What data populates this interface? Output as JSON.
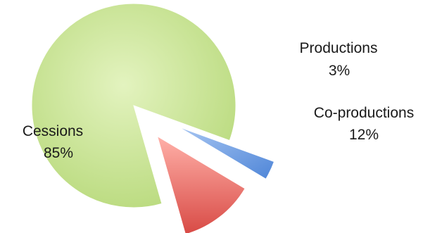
{
  "chart_data": {
    "type": "pie",
    "title": "",
    "slices": [
      {
        "name": "Cessions",
        "value": 85,
        "label": "85%",
        "color": "#c8e691",
        "exploded": false
      },
      {
        "name": "Productions",
        "value": 3,
        "label": "3%",
        "color": "#6d9ee4",
        "exploded": true
      },
      {
        "name": "Co-productions",
        "value": 12,
        "label": "12%",
        "color": "#e96a66",
        "exploded": true
      }
    ],
    "style": "3d-exploded",
    "legend": "none"
  }
}
